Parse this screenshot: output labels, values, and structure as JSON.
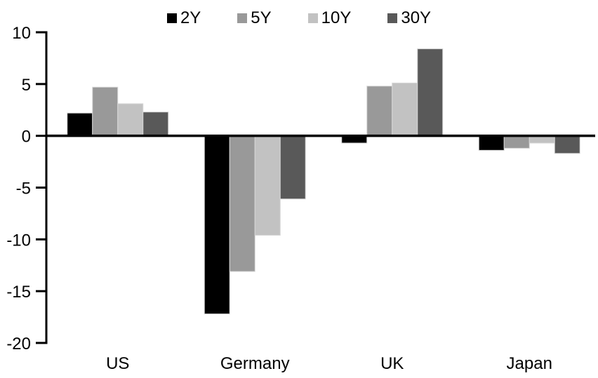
{
  "chart_data": {
    "type": "bar",
    "title": "",
    "xlabel": "",
    "ylabel": "",
    "categories": [
      "US",
      "Germany",
      "UK",
      "Japan"
    ],
    "series": [
      {
        "name": "2Y",
        "color": "#000000",
        "values": [
          2.2,
          -17.2,
          -0.7,
          -1.4
        ]
      },
      {
        "name": "5Y",
        "color": "#999999",
        "values": [
          4.7,
          -13.1,
          4.8,
          -1.2
        ]
      },
      {
        "name": "10Y",
        "color": "#c2c2c2",
        "values": [
          3.1,
          -9.6,
          5.1,
          -0.7
        ]
      },
      {
        "name": "30Y",
        "color": "#595959",
        "values": [
          2.3,
          -6.1,
          8.4,
          -1.7
        ]
      }
    ],
    "ylim": [
      -20,
      10
    ],
    "yticks": [
      10,
      5,
      0,
      -5,
      -10,
      -15,
      -20
    ],
    "grid": false,
    "legend_position": "top"
  },
  "colors": {
    "axis": "#000000",
    "text": "#000000",
    "background": "#ffffff",
    "bar_border": "#d6d6d6"
  }
}
